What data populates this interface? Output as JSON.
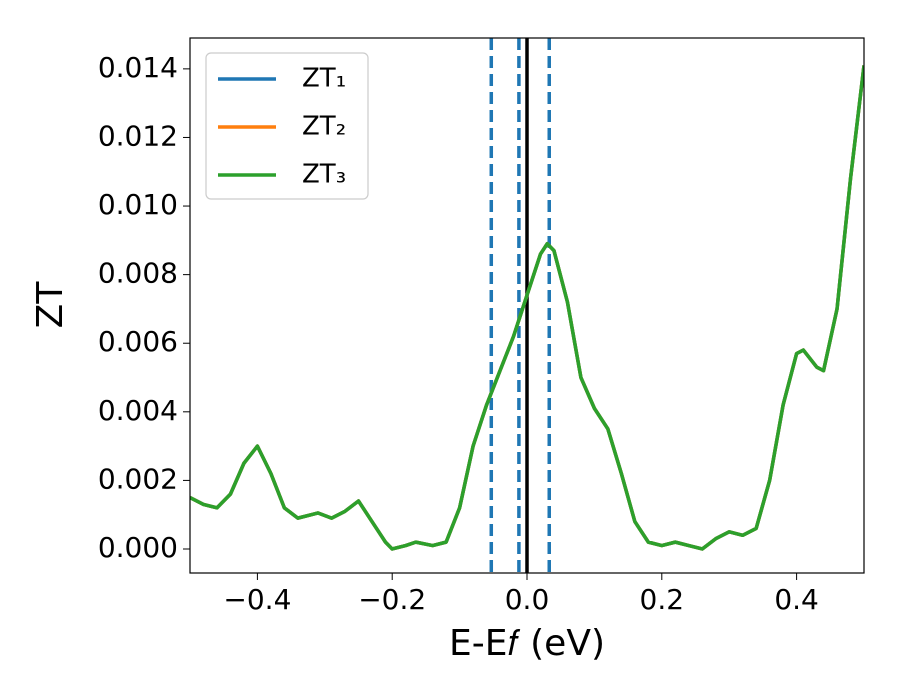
{
  "chart_data": {
    "type": "line",
    "xlabel": "E-E𝑓 (eV)",
    "ylabel": "ZT",
    "x": [
      -0.5,
      -0.48,
      -0.46,
      -0.44,
      -0.42,
      -0.4,
      -0.38,
      -0.36,
      -0.34,
      -0.32,
      -0.31,
      -0.29,
      -0.27,
      -0.25,
      -0.23,
      -0.21,
      -0.2,
      -0.18,
      -0.165,
      -0.14,
      -0.12,
      -0.1,
      -0.08,
      -0.06,
      -0.04,
      -0.02,
      0.0,
      0.02,
      0.03,
      0.04,
      0.06,
      0.08,
      0.1,
      0.12,
      0.14,
      0.16,
      0.18,
      0.2,
      0.22,
      0.24,
      0.26,
      0.28,
      0.3,
      0.32,
      0.34,
      0.36,
      0.38,
      0.4,
      0.41,
      0.43,
      0.44,
      0.46,
      0.48,
      0.5
    ],
    "series": [
      {
        "name": "ZT₁",
        "color": "#1f77b4",
        "values": [
          0.0015,
          0.0013,
          0.0012,
          0.0016,
          0.0025,
          0.003,
          0.0022,
          0.0012,
          0.0009,
          0.001,
          0.00105,
          0.0009,
          0.0011,
          0.0014,
          0.0008,
          0.0002,
          0.0,
          0.0001,
          0.0002,
          0.0001,
          0.0002,
          0.0012,
          0.003,
          0.0042,
          0.0052,
          0.0062,
          0.0074,
          0.0086,
          0.0089,
          0.0087,
          0.0072,
          0.005,
          0.0041,
          0.0035,
          0.0022,
          0.0008,
          0.0002,
          0.0001,
          0.0002,
          0.0001,
          0.0,
          0.0003,
          0.0005,
          0.0004,
          0.0006,
          0.002,
          0.0042,
          0.0057,
          0.0058,
          0.0053,
          0.0052,
          0.007,
          0.0108,
          0.0141
        ]
      },
      {
        "name": "ZT₂",
        "color": "#ff7f0e",
        "values": [
          0.0015,
          0.0013,
          0.0012,
          0.0016,
          0.0025,
          0.003,
          0.0022,
          0.0012,
          0.0009,
          0.001,
          0.00105,
          0.0009,
          0.0011,
          0.0014,
          0.0008,
          0.0002,
          0.0,
          0.0001,
          0.0002,
          0.0001,
          0.0002,
          0.0012,
          0.003,
          0.0042,
          0.0052,
          0.0062,
          0.0074,
          0.0086,
          0.0089,
          0.0087,
          0.0072,
          0.005,
          0.0041,
          0.0035,
          0.0022,
          0.0008,
          0.0002,
          0.0001,
          0.0002,
          0.0001,
          0.0,
          0.0003,
          0.0005,
          0.0004,
          0.0006,
          0.002,
          0.0042,
          0.0057,
          0.0058,
          0.0053,
          0.0052,
          0.007,
          0.0108,
          0.0141
        ]
      },
      {
        "name": "ZT₃",
        "color": "#2ca02c",
        "values": [
          0.0015,
          0.0013,
          0.0012,
          0.0016,
          0.0025,
          0.003,
          0.0022,
          0.0012,
          0.0009,
          0.001,
          0.00105,
          0.0009,
          0.0011,
          0.0014,
          0.0008,
          0.0002,
          0.0,
          0.0001,
          0.0002,
          0.0001,
          0.0002,
          0.0012,
          0.003,
          0.0042,
          0.0052,
          0.0062,
          0.0074,
          0.0086,
          0.0089,
          0.0087,
          0.0072,
          0.005,
          0.0041,
          0.0035,
          0.0022,
          0.0008,
          0.0002,
          0.0001,
          0.0002,
          0.0001,
          0.0,
          0.0003,
          0.0005,
          0.0004,
          0.0006,
          0.002,
          0.0042,
          0.0057,
          0.0058,
          0.0053,
          0.0052,
          0.007,
          0.0108,
          0.0141
        ]
      }
    ],
    "vlines": [
      {
        "value": -0.053,
        "color": "#1f77b4",
        "style": "dashed"
      },
      {
        "value": -0.012,
        "color": "#1f77b4",
        "style": "dashed"
      },
      {
        "value": 0.033,
        "color": "#1f77b4",
        "style": "dashed"
      },
      {
        "value": 0.0,
        "color": "#000000",
        "style": "solid"
      }
    ],
    "xlim": [
      -0.5,
      0.5
    ],
    "xticks": [
      {
        "value": -0.4,
        "label": "−0.4"
      },
      {
        "value": -0.2,
        "label": "−0.2"
      },
      {
        "value": 0.0,
        "label": "0.0"
      },
      {
        "value": 0.2,
        "label": "0.2"
      },
      {
        "value": 0.4,
        "label": "0.4"
      }
    ],
    "ylim": [
      -0.0007,
      0.0149
    ],
    "yticks": [
      {
        "value": 0.0,
        "label": "0.000"
      },
      {
        "value": 0.002,
        "label": "0.002"
      },
      {
        "value": 0.004,
        "label": "0.004"
      },
      {
        "value": 0.006,
        "label": "0.006"
      },
      {
        "value": 0.008,
        "label": "0.008"
      },
      {
        "value": 0.01,
        "label": "0.010"
      },
      {
        "value": 0.012,
        "label": "0.012"
      },
      {
        "value": 0.014,
        "label": "0.014"
      }
    ],
    "legend": "upper left"
  }
}
